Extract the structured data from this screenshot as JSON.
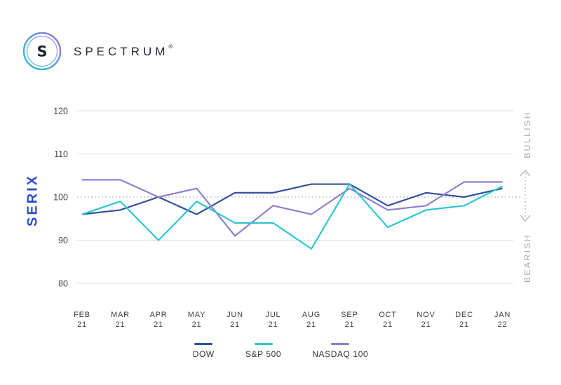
{
  "header": {
    "brand": "SPECTRUM",
    "trademark": "®",
    "logo_monogram": "S"
  },
  "annotations": {
    "bullish": "BULLISH",
    "bearish": "BEARISH"
  },
  "colors": {
    "dow": "#31519e",
    "sp500": "#2fc5d2",
    "nasdaq100": "#8d80d0",
    "serix_blue": "#2c4ec9",
    "grid": "#dcdcdf",
    "baseline_dotted": "#a9a9ad",
    "side_label_gray": "#a0a8b0",
    "logo_gradient": [
      "#2fbdd1",
      "#5a9bdb",
      "#a46fd8"
    ]
  },
  "chart_data": {
    "type": "line",
    "title": "",
    "xlabel": "",
    "ylabel": "SERIX",
    "ylim": [
      80,
      120
    ],
    "yticks": [
      80,
      90,
      100,
      110,
      120
    ],
    "baseline": 100,
    "grid": "horizontal",
    "legend_position": "bottom",
    "x_categories": [
      {
        "month": "FEB",
        "year": "21"
      },
      {
        "month": "MAR",
        "year": "21"
      },
      {
        "month": "APR",
        "year": "21"
      },
      {
        "month": "MAY",
        "year": "21"
      },
      {
        "month": "JUN",
        "year": "21"
      },
      {
        "month": "JUL",
        "year": "21"
      },
      {
        "month": "AUG",
        "year": "21"
      },
      {
        "month": "SEP",
        "year": "21"
      },
      {
        "month": "OCT",
        "year": "21"
      },
      {
        "month": "NOV",
        "year": "21"
      },
      {
        "month": "DEC",
        "year": "21"
      },
      {
        "month": "JAN",
        "year": "22"
      }
    ],
    "series": [
      {
        "name": "DOW",
        "color": "#31519e",
        "values": [
          96,
          97,
          100,
          96,
          101,
          101,
          103,
          103,
          98,
          101,
          100,
          102
        ]
      },
      {
        "name": "S&P 500",
        "color": "#2fc5d2",
        "values": [
          96,
          99,
          90,
          99,
          94,
          94,
          88,
          103,
          93,
          97,
          98,
          102.5
        ]
      },
      {
        "name": "NASDAQ 100",
        "color": "#8d80d0",
        "values": [
          104,
          104,
          100,
          102,
          91,
          98,
          96,
          102,
          97,
          98,
          103.5,
          103.5
        ]
      }
    ]
  }
}
